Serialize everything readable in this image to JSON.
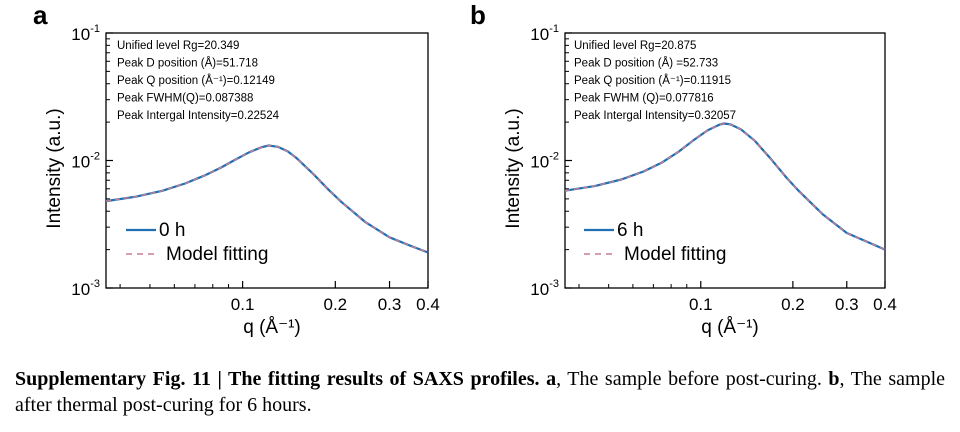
{
  "chart_data": [
    {
      "type": "line",
      "panel_label": "a",
      "xlabel": "q (Å⁻¹)",
      "ylabel": "Intensity (a.u.)",
      "xscale": "log",
      "yscale": "log",
      "xlim": [
        0.036,
        0.4
      ],
      "ylim": [
        0.001,
        0.1
      ],
      "xticks": [
        0.1,
        0.2,
        0.3,
        0.4
      ],
      "xtick_labels": [
        "0.1",
        "0.2",
        "0.3",
        "0.4"
      ],
      "yticks": [
        0.001,
        0.01,
        0.1
      ],
      "ytick_labels": [
        {
          "base": "10",
          "exp": "-3"
        },
        {
          "base": "10",
          "exp": "-2"
        },
        {
          "base": "10",
          "exp": "-1"
        }
      ],
      "annotations": [
        "Unified level Rg=20.349",
        "Peak D position (Å)=51.718",
        "Peak Q position (Å⁻¹)=0.12149",
        "Peak FWHM(Q)=0.087388",
        "Peak Intergal Intensity=0.22524"
      ],
      "series": [
        {
          "name": "0 h",
          "style": "solid",
          "color": "#1f6fb2",
          "x": [
            0.036,
            0.045,
            0.055,
            0.065,
            0.075,
            0.085,
            0.095,
            0.105,
            0.115,
            0.1215,
            0.13,
            0.14,
            0.15,
            0.17,
            0.19,
            0.21,
            0.25,
            0.3,
            0.35,
            0.4
          ],
          "y": [
            0.0048,
            0.0052,
            0.0058,
            0.0066,
            0.0076,
            0.0088,
            0.0102,
            0.0116,
            0.0127,
            0.0131,
            0.0128,
            0.0118,
            0.0104,
            0.0078,
            0.0059,
            0.0047,
            0.0033,
            0.0025,
            0.00215,
            0.0019
          ]
        },
        {
          "name": "Model fitting",
          "style": "dashed",
          "color": "#c77d92",
          "x": [
            0.036,
            0.045,
            0.055,
            0.065,
            0.075,
            0.085,
            0.095,
            0.105,
            0.115,
            0.1215,
            0.13,
            0.14,
            0.15,
            0.17,
            0.19,
            0.21,
            0.25,
            0.3,
            0.35,
            0.4
          ],
          "y": [
            0.0048,
            0.0052,
            0.0058,
            0.0066,
            0.0076,
            0.0088,
            0.0102,
            0.0116,
            0.0127,
            0.0131,
            0.0128,
            0.0118,
            0.0104,
            0.0078,
            0.0059,
            0.0047,
            0.0033,
            0.0025,
            0.00215,
            0.0019
          ]
        }
      ]
    },
    {
      "type": "line",
      "panel_label": "b",
      "xlabel": "q (Å⁻¹)",
      "ylabel": "Intensity (a.u.)",
      "xscale": "log",
      "yscale": "log",
      "xlim": [
        0.036,
        0.4
      ],
      "ylim": [
        0.001,
        0.1
      ],
      "xticks": [
        0.1,
        0.2,
        0.3,
        0.4
      ],
      "xtick_labels": [
        "0.1",
        "0.2",
        "0.3",
        "0.4"
      ],
      "yticks": [
        0.001,
        0.01,
        0.1
      ],
      "ytick_labels": [
        {
          "base": "10",
          "exp": "-3"
        },
        {
          "base": "10",
          "exp": "-2"
        },
        {
          "base": "10",
          "exp": "-1"
        }
      ],
      "annotations": [
        "Unified level Rg=20.875",
        "Peak D position (Å) =52.733",
        "Peak Q position (Å⁻¹)=0.11915",
        "Peak FWHM (Q)=0.077816",
        "Peak Intergal Intensity=0.32057"
      ],
      "series": [
        {
          "name": "6 h",
          "style": "solid",
          "color": "#1f6fb2",
          "x": [
            0.036,
            0.045,
            0.055,
            0.065,
            0.075,
            0.085,
            0.095,
            0.105,
            0.115,
            0.119,
            0.125,
            0.135,
            0.15,
            0.17,
            0.19,
            0.21,
            0.25,
            0.3,
            0.35,
            0.4
          ],
          "y": [
            0.0058,
            0.0063,
            0.0071,
            0.0082,
            0.0097,
            0.0118,
            0.0145,
            0.0172,
            0.0191,
            0.0195,
            0.0192,
            0.0176,
            0.0143,
            0.0102,
            0.0074,
            0.0057,
            0.0038,
            0.0027,
            0.0023,
            0.002
          ]
        },
        {
          "name": "Model fitting",
          "style": "dashed",
          "color": "#c77d92",
          "x": [
            0.036,
            0.045,
            0.055,
            0.065,
            0.075,
            0.085,
            0.095,
            0.105,
            0.115,
            0.119,
            0.125,
            0.135,
            0.15,
            0.17,
            0.19,
            0.21,
            0.25,
            0.3,
            0.35,
            0.4
          ],
          "y": [
            0.0058,
            0.0063,
            0.0071,
            0.0082,
            0.0097,
            0.0118,
            0.0145,
            0.0172,
            0.0191,
            0.0195,
            0.0192,
            0.0176,
            0.0143,
            0.0102,
            0.0074,
            0.0057,
            0.0038,
            0.0027,
            0.0023,
            0.002
          ]
        }
      ]
    }
  ],
  "caption": {
    "label": "Supplementary Fig. 11 | The fitting results of SAXS profiles.",
    "part_a_letter": "a",
    "part_a_text": ", The sample before post-curing.",
    "part_b_letter": "b",
    "part_b_text": ", The sample after thermal post-curing for 6 hours."
  }
}
